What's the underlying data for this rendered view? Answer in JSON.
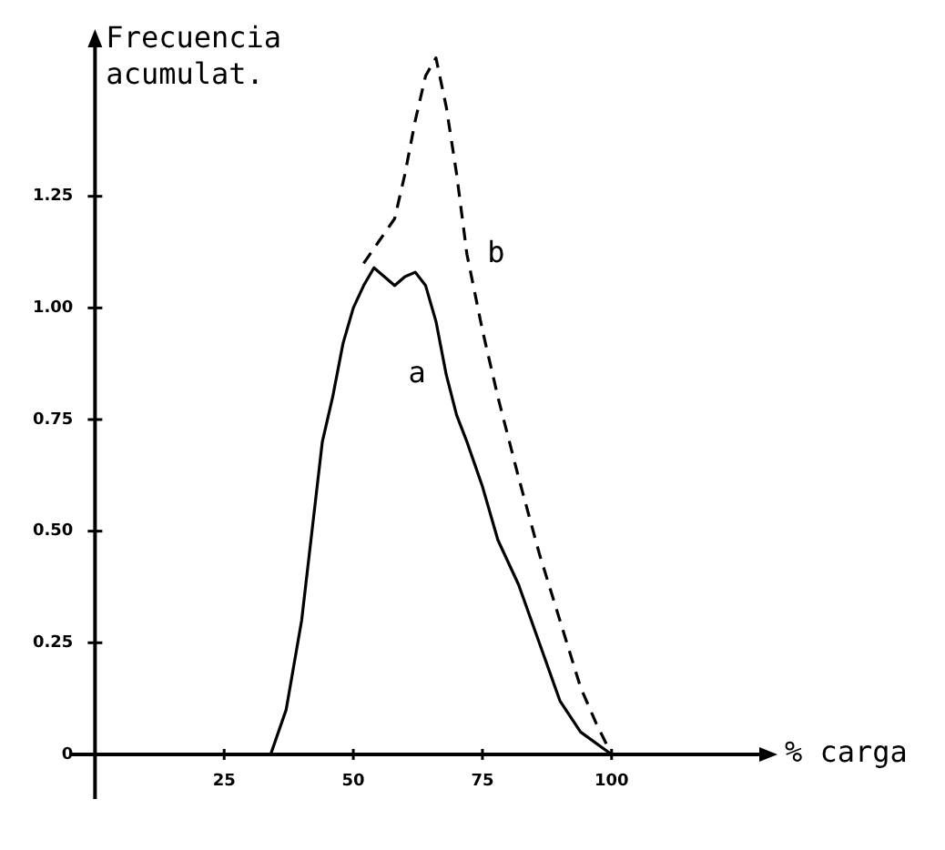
{
  "chart_data": {
    "type": "line",
    "xlabel": "% carga",
    "ylabel": "Frecuencia acumulat.",
    "series": [
      {
        "name": "a",
        "color": "#000000",
        "line_style": "solid",
        "x": [
          34,
          37,
          40,
          42,
          44,
          46,
          48,
          50,
          52,
          54,
          56,
          58,
          60,
          62,
          64,
          66,
          68,
          70,
          72,
          75,
          78,
          82,
          86,
          90,
          94,
          100
        ],
        "values": [
          0,
          0.1,
          0.3,
          0.5,
          0.7,
          0.8,
          0.92,
          1.0,
          1.05,
          1.09,
          1.07,
          1.05,
          1.07,
          1.08,
          1.05,
          0.97,
          0.85,
          0.76,
          0.7,
          0.6,
          0.48,
          0.38,
          0.25,
          0.12,
          0.05,
          0
        ]
      },
      {
        "name": "b",
        "color": "#000000",
        "line_style": "dashed",
        "x": [
          52,
          55,
          58,
          60,
          62,
          64,
          66,
          68,
          70,
          72,
          75,
          78,
          82,
          86,
          90,
          94,
          97,
          100
        ],
        "values": [
          1.1,
          1.15,
          1.2,
          1.3,
          1.42,
          1.52,
          1.56,
          1.45,
          1.3,
          1.12,
          0.95,
          0.8,
          0.62,
          0.45,
          0.3,
          0.15,
          0.07,
          0
        ]
      }
    ],
    "xlim": [
      -5,
      130
    ],
    "ylim": [
      -0.1,
      1.6
    ],
    "xticks": [
      25,
      50,
      75,
      100
    ],
    "yticks": [
      {
        "value": 0,
        "label": "0"
      },
      {
        "value": 0.25,
        "label": "0.25"
      },
      {
        "value": 0.5,
        "label": "0.50"
      },
      {
        "value": 0.75,
        "label": "0.75"
      },
      {
        "value": 1,
        "label": "1.00"
      },
      {
        "value": 1.25,
        "label": "1.25"
      }
    ],
    "legend": false,
    "marker": "none"
  }
}
